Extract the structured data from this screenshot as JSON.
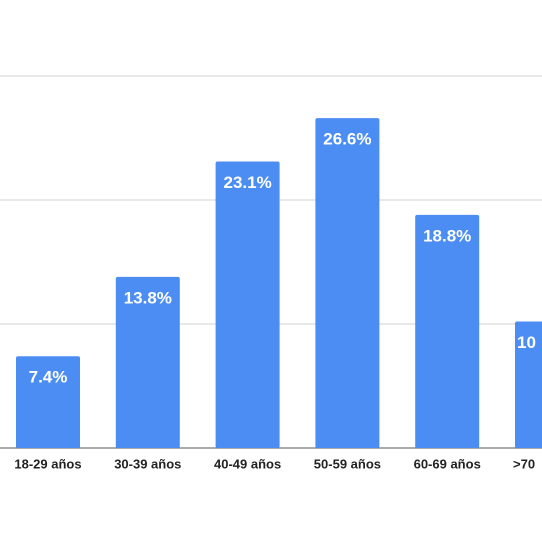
{
  "chart_data": {
    "type": "bar",
    "categories": [
      "18-29 años",
      "30-39 años",
      "40-49 años",
      "50-59 años",
      "60-69 años",
      ">70"
    ],
    "values": [
      7.4,
      13.8,
      23.1,
      26.6,
      18.8,
      10.2
    ],
    "value_labels": [
      "7.4%",
      "13.8%",
      "23.1%",
      "26.6%",
      "18.8%",
      "10"
    ],
    "color": "#4c8df4",
    "ylim": [
      0,
      30
    ],
    "yticks": [
      0,
      10,
      20,
      30
    ],
    "grid": true
  }
}
